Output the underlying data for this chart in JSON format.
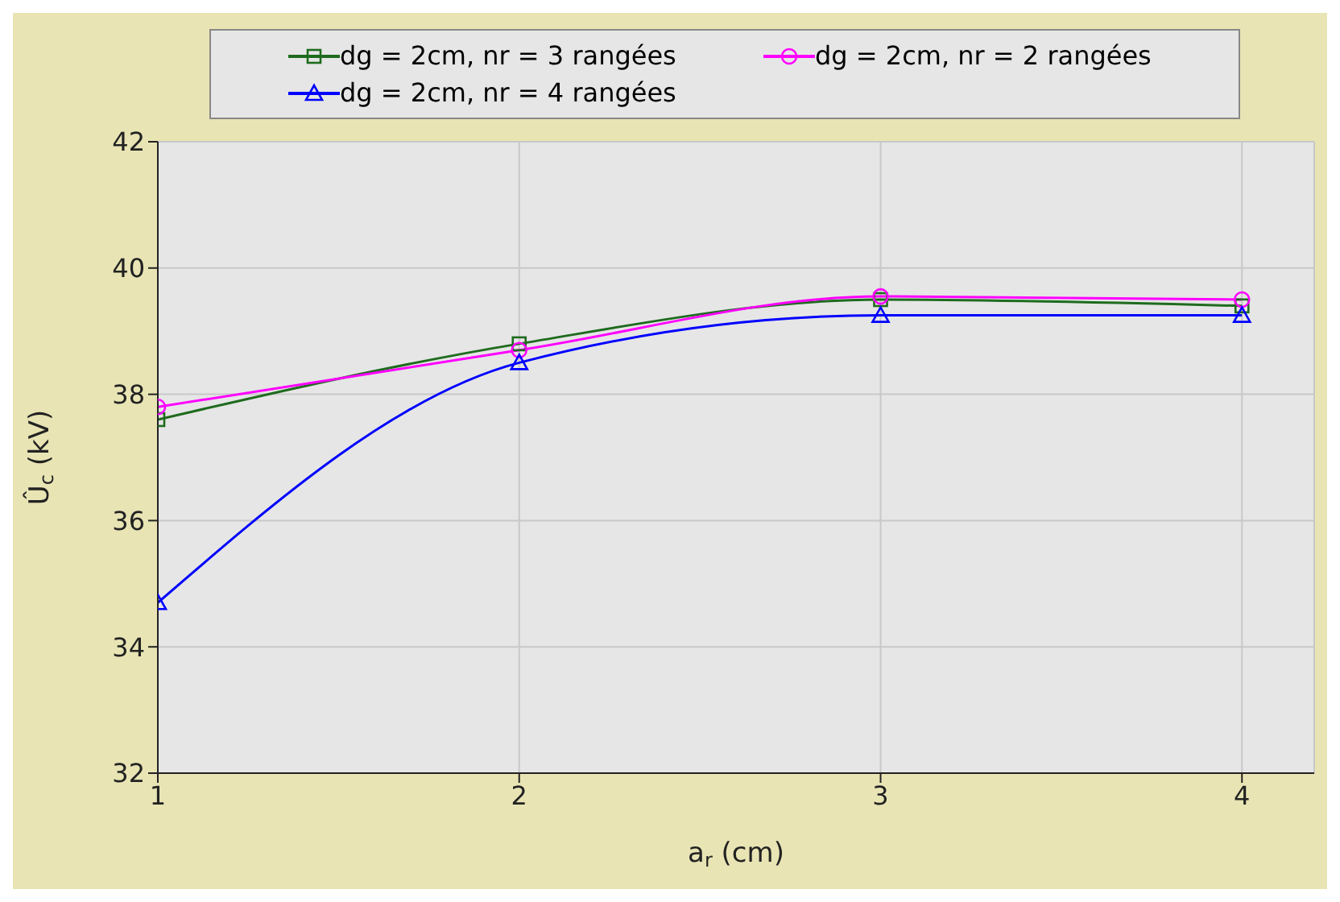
{
  "chart_data": {
    "type": "line",
    "xlabel": "a$_{r}$ (cm)",
    "ylabel": "Û$_{c}$ (kV)",
    "x": [
      1,
      2,
      3,
      4
    ],
    "series": [
      {
        "name": "dg = 2cm, nr = 3 rangées",
        "color": "#1e6b1e",
        "marker": "square",
        "values": [
          37.6,
          38.8,
          39.5,
          39.4
        ]
      },
      {
        "name": "dg = 2cm, nr = 2 rangées",
        "color": "#ff00ff",
        "marker": "circle",
        "values": [
          37.8,
          38.7,
          39.55,
          39.5
        ]
      },
      {
        "name": "dg = 2cm, nr = 4 rangées",
        "color": "#0000ff",
        "marker": "triangle",
        "values": [
          34.7,
          38.5,
          39.25,
          39.25
        ]
      }
    ],
    "xlim": [
      1,
      4.2
    ],
    "xticks": [
      1,
      2,
      3,
      4
    ],
    "ylim": [
      32,
      42
    ],
    "yticks": [
      32,
      34,
      36,
      38,
      40,
      42
    ],
    "grid": true,
    "legend": "top"
  }
}
